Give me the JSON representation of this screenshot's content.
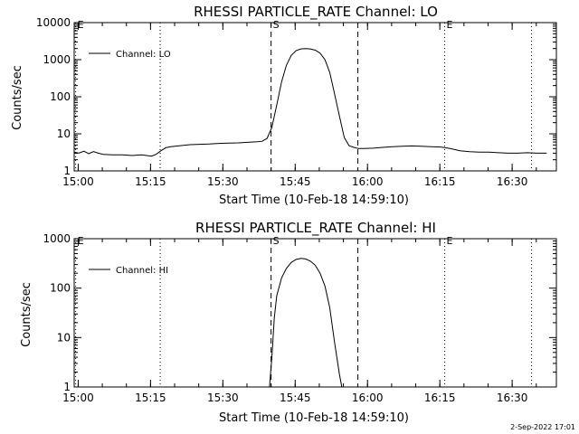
{
  "footer": {
    "timestamp": "2-Sep-2022 17:01"
  },
  "chart_data": [
    {
      "type": "line",
      "title": "RHESSI PARTICLE_RATE Channel: LO",
      "xlabel": "Start Time (10-Feb-18 14:59:10)",
      "ylabel": "Counts/sec",
      "yscale": "log",
      "ylim": [
        1,
        10000
      ],
      "xlim_minutes": [
        0,
        100
      ],
      "x_tick_labels": [
        "15:00",
        "15:15",
        "15:30",
        "15:45",
        "16:00",
        "16:15",
        "16:30"
      ],
      "y_tick_labels": [
        "1",
        "10",
        "100",
        "1000",
        "10000"
      ],
      "legend": {
        "placement": "top-left",
        "entries": [
          "Channel: LO"
        ]
      },
      "markers": [
        {
          "label": "E",
          "style": "dotted",
          "x": "14:59"
        },
        {
          "label": "",
          "style": "dotted",
          "x": "15:17"
        },
        {
          "label": "S",
          "style": "dashed",
          "x": "15:40"
        },
        {
          "label": "",
          "style": "dashed",
          "x": "15:58"
        },
        {
          "label": "E",
          "style": "dotted",
          "x": "16:16"
        },
        {
          "label": "",
          "style": "dotted",
          "x": "16:34"
        }
      ],
      "series": [
        {
          "name": "Channel: LO",
          "x": [
            0,
            1,
            2,
            3,
            4,
            5,
            6,
            8,
            10,
            12,
            14,
            16,
            17,
            18,
            19,
            20,
            22,
            24,
            26,
            28,
            30,
            32,
            34,
            36,
            38,
            39,
            40,
            41,
            42,
            43,
            44,
            45,
            46,
            47,
            48,
            49,
            50,
            51,
            52,
            53,
            54,
            55,
            56,
            57,
            58,
            59,
            60,
            62,
            64,
            66,
            68,
            70,
            72,
            74,
            76,
            78,
            80,
            82,
            84,
            86,
            88,
            90,
            92,
            94,
            96,
            98
          ],
          "y": [
            3.2,
            3,
            3.4,
            2.9,
            3.3,
            3,
            2.8,
            2.7,
            2.7,
            2.6,
            2.7,
            2.5,
            2.8,
            3.5,
            4.2,
            4.5,
            4.8,
            5.1,
            5.2,
            5.3,
            5.5,
            5.6,
            5.7,
            5.9,
            6.1,
            6.3,
            7.5,
            15,
            60,
            250,
            700,
            1300,
            1750,
            1950,
            2000,
            1950,
            1800,
            1500,
            1000,
            450,
            120,
            30,
            8,
            4.8,
            4.3,
            4.0,
            4.0,
            4.1,
            4.3,
            4.5,
            4.6,
            4.7,
            4.6,
            4.5,
            4.4,
            4.0,
            3.5,
            3.3,
            3.2,
            3.2,
            3.1,
            3.0,
            3.0,
            3.1,
            3.0,
            3.0
          ]
        }
      ]
    },
    {
      "type": "line",
      "title": "RHESSI PARTICLE_RATE Channel: HI",
      "xlabel": "Start Time (10-Feb-18 14:59:10)",
      "ylabel": "Counts/sec",
      "yscale": "log",
      "ylim": [
        1,
        1000
      ],
      "xlim_minutes": [
        0,
        100
      ],
      "x_tick_labels": [
        "15:00",
        "15:15",
        "15:30",
        "15:45",
        "16:00",
        "16:15",
        "16:30"
      ],
      "y_tick_labels": [
        "1",
        "10",
        "100",
        "1000"
      ],
      "legend": {
        "placement": "top-left",
        "entries": [
          "Channel: HI"
        ]
      },
      "markers": [
        {
          "label": "E",
          "style": "dotted",
          "x": "14:59"
        },
        {
          "label": "",
          "style": "dotted",
          "x": "15:17"
        },
        {
          "label": "S",
          "style": "dashed",
          "x": "15:40"
        },
        {
          "label": "",
          "style": "dashed",
          "x": "15:58"
        },
        {
          "label": "E",
          "style": "dotted",
          "x": "16:16"
        },
        {
          "label": "",
          "style": "dotted",
          "x": "16:34"
        }
      ],
      "series": [
        {
          "name": "Channel: HI",
          "x": [
            40.5,
            41,
            41.5,
            42,
            43,
            44,
            45,
            46,
            47,
            48,
            49,
            50,
            51,
            52,
            53,
            54,
            55,
            55.5
          ],
          "y": [
            1,
            4,
            25,
            70,
            160,
            250,
            330,
            380,
            400,
            390,
            350,
            290,
            200,
            110,
            40,
            8,
            1.8,
            1
          ]
        }
      ]
    }
  ]
}
